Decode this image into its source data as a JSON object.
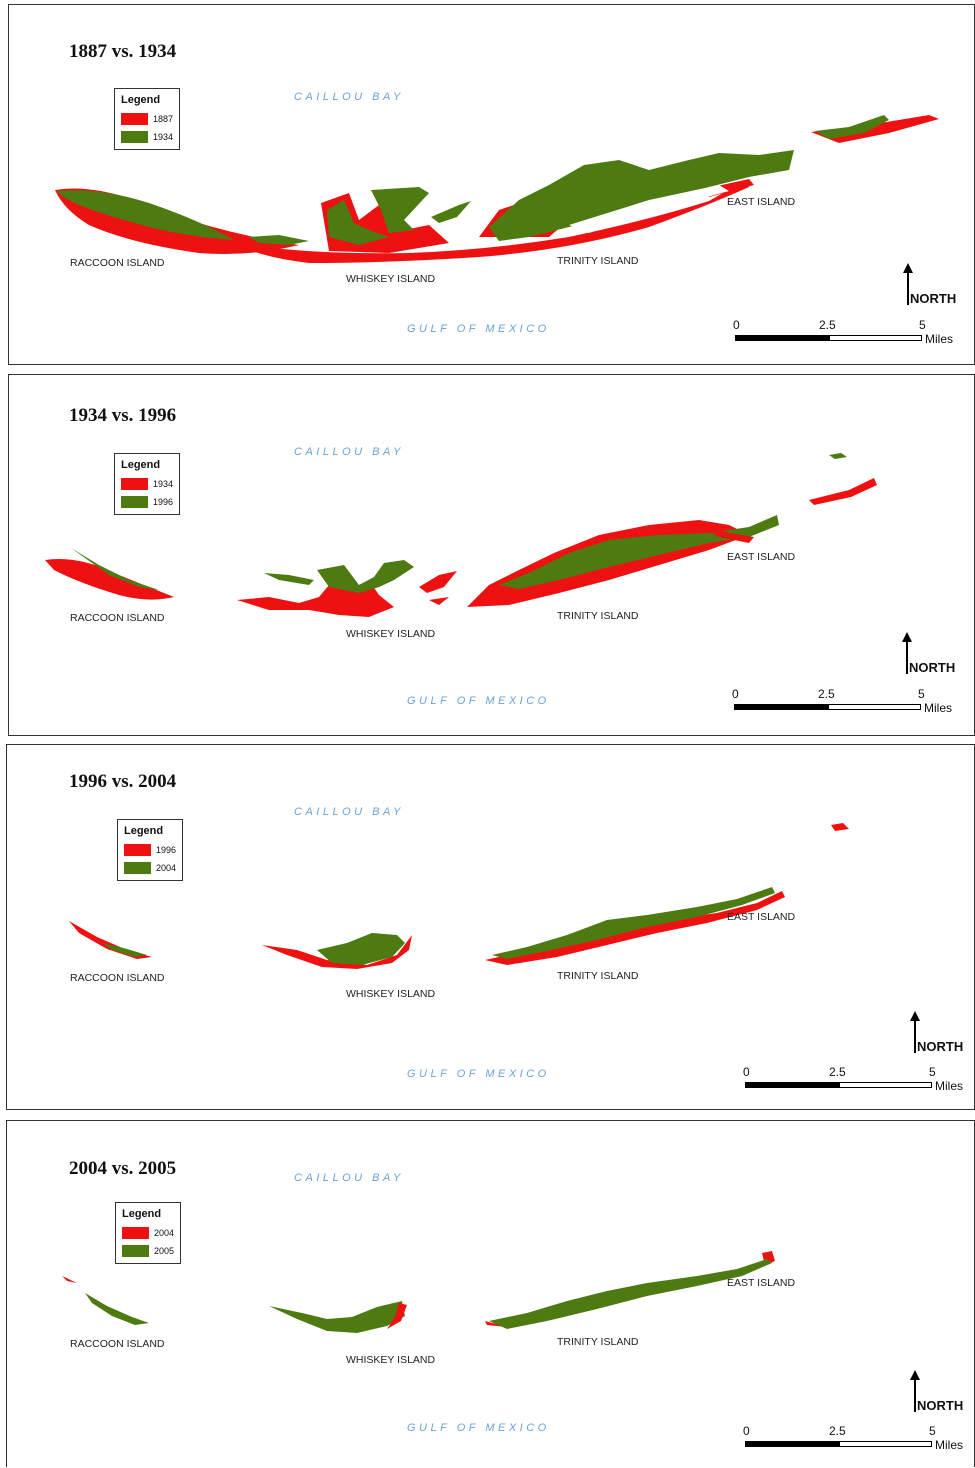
{
  "colors": {
    "red": "#ee1111",
    "green": "#4e7a12",
    "water_text": "#6aa3d8"
  },
  "panels": [
    {
      "title": "1887 vs. 1934",
      "legend": {
        "title": "Legend",
        "items": [
          {
            "label": "1887",
            "color": "#ee1111"
          },
          {
            "label": "1934",
            "color": "#4e7a12"
          }
        ]
      },
      "bay": "CAILLOU BAY",
      "gulf": "GULF OF MEXICO",
      "islands": {
        "raccoon": "RACCOON ISLAND",
        "whiskey": "WHISKEY ISLAND",
        "trinity": "TRINITY ISLAND",
        "east": "EAST ISLAND"
      },
      "north": "NORTH",
      "scale": {
        "t0": "0",
        "t1": "2.5",
        "t2": "5",
        "unit": "Miles"
      }
    },
    {
      "title": "1934 vs. 1996",
      "legend": {
        "title": "Legend",
        "items": [
          {
            "label": "1934",
            "color": "#ee1111"
          },
          {
            "label": "1996",
            "color": "#4e7a12"
          }
        ]
      },
      "bay": "CAILLOU BAY",
      "gulf": "GULF OF MEXICO",
      "islands": {
        "raccoon": "RACCOON ISLAND",
        "whiskey": "WHISKEY ISLAND",
        "trinity": "TRINITY ISLAND",
        "east": "EAST ISLAND"
      },
      "north": "NORTH",
      "scale": {
        "t0": "0",
        "t1": "2.5",
        "t2": "5",
        "unit": "Miles"
      }
    },
    {
      "title": "1996 vs. 2004",
      "legend": {
        "title": "Legend",
        "items": [
          {
            "label": "1996",
            "color": "#ee1111"
          },
          {
            "label": "2004",
            "color": "#4e7a12"
          }
        ]
      },
      "bay": "CAILLOU BAY",
      "gulf": "GULF OF MEXICO",
      "islands": {
        "raccoon": "RACCOON ISLAND",
        "whiskey": "WHISKEY ISLAND",
        "trinity": "TRINITY ISLAND",
        "east": "EAST ISLAND"
      },
      "north": "NORTH",
      "scale": {
        "t0": "0",
        "t1": "2.5",
        "t2": "5",
        "unit": "Miles"
      }
    },
    {
      "title": "2004 vs. 2005",
      "legend": {
        "title": "Legend",
        "items": [
          {
            "label": "2004",
            "color": "#ee1111"
          },
          {
            "label": "2005",
            "color": "#4e7a12"
          }
        ]
      },
      "bay": "CAILLOU BAY",
      "gulf": "GULF OF MEXICO",
      "islands": {
        "raccoon": "RACCOON ISLAND",
        "whiskey": "WHISKEY ISLAND",
        "trinity": "TRINITY ISLAND",
        "east": "EAST ISLAND"
      },
      "north": "NORTH",
      "scale": {
        "t0": "0",
        "t1": "2.5",
        "t2": "5",
        "unit": "Miles"
      }
    }
  ]
}
